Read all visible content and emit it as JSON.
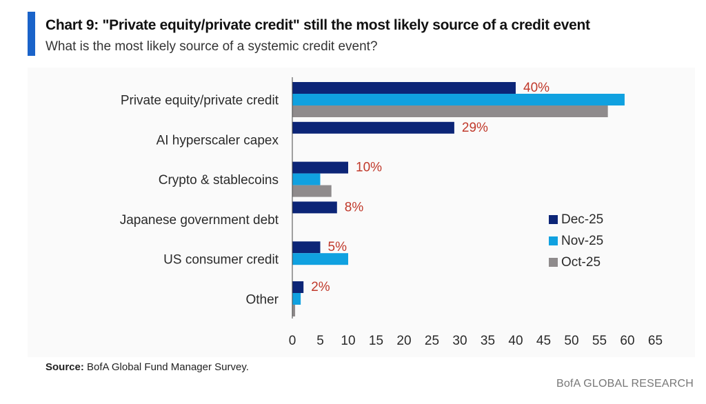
{
  "header": {
    "title": "Chart 9: \"Private equity/private credit\" still the most likely source of a credit event",
    "subtitle": "What is the most likely source of a systemic credit event?"
  },
  "colors": {
    "accent": "#1a63c9",
    "dec25": "#0c2577",
    "nov25": "#10a1e0",
    "oct25": "#8f8b8c",
    "label": "#c0392b"
  },
  "chart_data": {
    "type": "bar",
    "orientation": "horizontal",
    "title": "What is the most likely source of a systemic credit event?",
    "categories": [
      "Private equity/private credit",
      "AI hyperscaler capex",
      "Crypto & stablecoins",
      "Japanese government debt",
      "US consumer credit",
      "Other"
    ],
    "series": [
      {
        "name": "Dec-25",
        "values": [
          40,
          29,
          10,
          8,
          5,
          2
        ]
      },
      {
        "name": "Nov-25",
        "values": [
          59.5,
          0,
          5,
          0,
          10,
          1.5
        ]
      },
      {
        "name": "Oct-25",
        "values": [
          56.5,
          0,
          7,
          0,
          0,
          0.5
        ]
      }
    ],
    "data_labels": [
      "40%",
      "29%",
      "10%",
      "8%",
      "5%",
      "2%"
    ],
    "xlim": [
      0,
      65
    ],
    "xticks": [
      "0",
      "5",
      "10",
      "15",
      "20",
      "25",
      "30",
      "35",
      "40",
      "45",
      "50",
      "55",
      "60",
      "65"
    ],
    "xlabel": "",
    "ylabel": "",
    "legend_position": "right"
  },
  "source": {
    "label": "Source:",
    "text": "BofA Global Fund Manager Survey."
  },
  "footer": "BofA GLOBAL RESEARCH"
}
